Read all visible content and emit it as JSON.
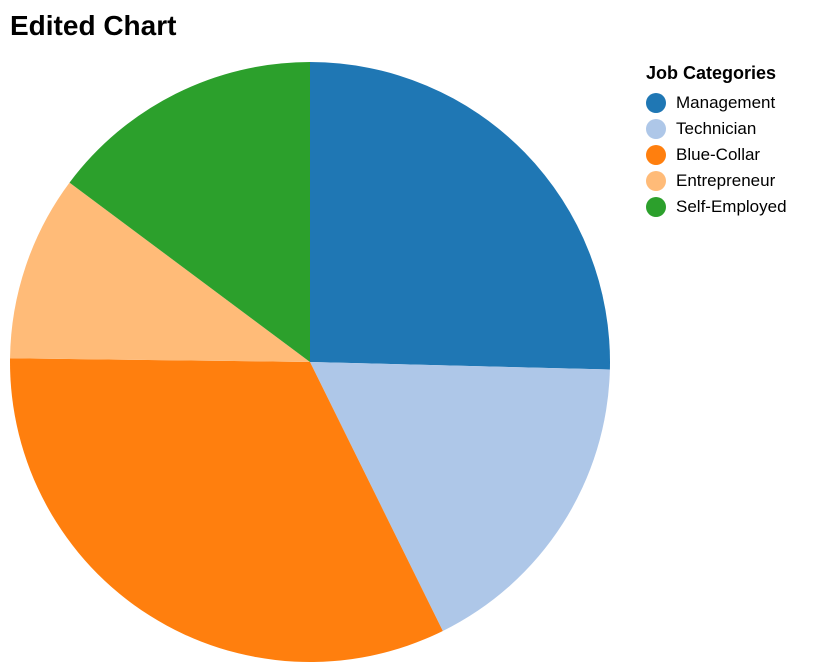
{
  "chart_data": {
    "type": "pie",
    "title": "Edited Chart",
    "legend_title": "Job Categories",
    "legend_position": "top-right",
    "categories": [
      "Management",
      "Technician",
      "Blue-Collar",
      "Entrepreneur",
      "Self-Employed"
    ],
    "values": [
      25.4,
      17.3,
      32.5,
      10.0,
      14.8
    ],
    "colors": [
      "#1f77b4",
      "#aec7e8",
      "#ff7f0e",
      "#ffbb78",
      "#2ca02c"
    ]
  }
}
